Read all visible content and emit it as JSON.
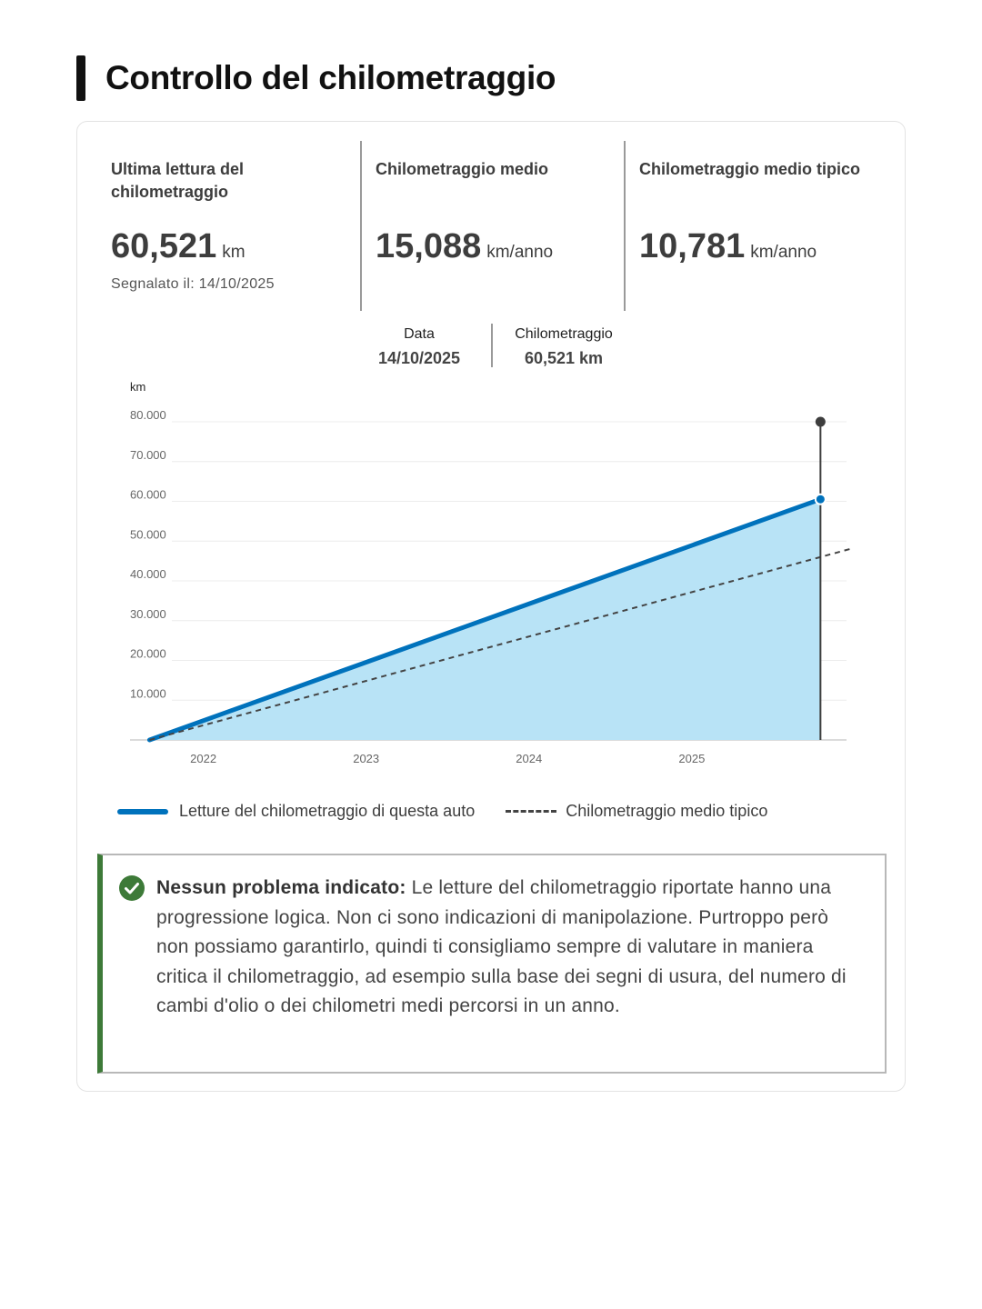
{
  "page_title": "Controllo del chilometraggio",
  "stats": [
    {
      "label": "Ultima lettura del chilometraggio",
      "value": "60,521",
      "unit": "km",
      "sub": "Segnalato il: 14/10/2025"
    },
    {
      "label": "Chilometraggio medio",
      "value": "15,088",
      "unit": "km/anno"
    },
    {
      "label": "Chilometraggio medio tipico",
      "value": "10,781",
      "unit": "km/anno"
    }
  ],
  "tooltip": {
    "date_label": "Data",
    "date_value": "14/10/2025",
    "mileage_label": "Chilometraggio",
    "mileage_value": "60,521 km"
  },
  "chart_data": {
    "type": "area",
    "ylabel": "km",
    "ylim": [
      0,
      80000
    ],
    "y_ticks": [
      "10.000",
      "20.000",
      "30.000",
      "40.000",
      "50.000",
      "60.000",
      "70.000",
      "80.000"
    ],
    "y_tick_values": [
      10000,
      20000,
      30000,
      40000,
      50000,
      60000,
      70000,
      80000
    ],
    "xlim": [
      2021.55,
      2025.95
    ],
    "x_ticks": [
      "2022",
      "2023",
      "2024",
      "2025"
    ],
    "x_tick_values": [
      2022,
      2023,
      2024,
      2025
    ],
    "grid": true,
    "legend_position": "bottom",
    "series": [
      {
        "name": "Letture del chilometraggio di questa auto",
        "style": "solid-area",
        "color": "#0072bc",
        "fill": "#b8e3f6",
        "points": [
          [
            2021.67,
            0
          ],
          [
            2025.79,
            60521
          ]
        ]
      },
      {
        "name": "Chilometraggio medio tipico",
        "style": "dashed",
        "color": "#444444",
        "points": [
          [
            2021.67,
            0
          ],
          [
            2025.97,
            48000
          ]
        ]
      }
    ],
    "marker": {
      "x": 2025.79,
      "y": 60521
    }
  },
  "legend": {
    "series_1": "Letture del chilometraggio di questa auto",
    "series_2": "Chilometraggio medio tipico"
  },
  "notice": {
    "icon": "check-circle-icon",
    "title": "Nessun problema indicato:",
    "body": " Le letture del chilometraggio riportate hanno una progressione logica. Non ci sono indicazioni di manipolazione. Purtroppo però non possiamo garantirlo, quindi ti consigliamo sempre di valutare in maniera critica il chilometraggio, ad esempio sulla base dei segni di usura, del numero di cambi d'olio o dei chilometri medi percorsi in un anno.",
    "accent_color": "#3d7a38"
  }
}
